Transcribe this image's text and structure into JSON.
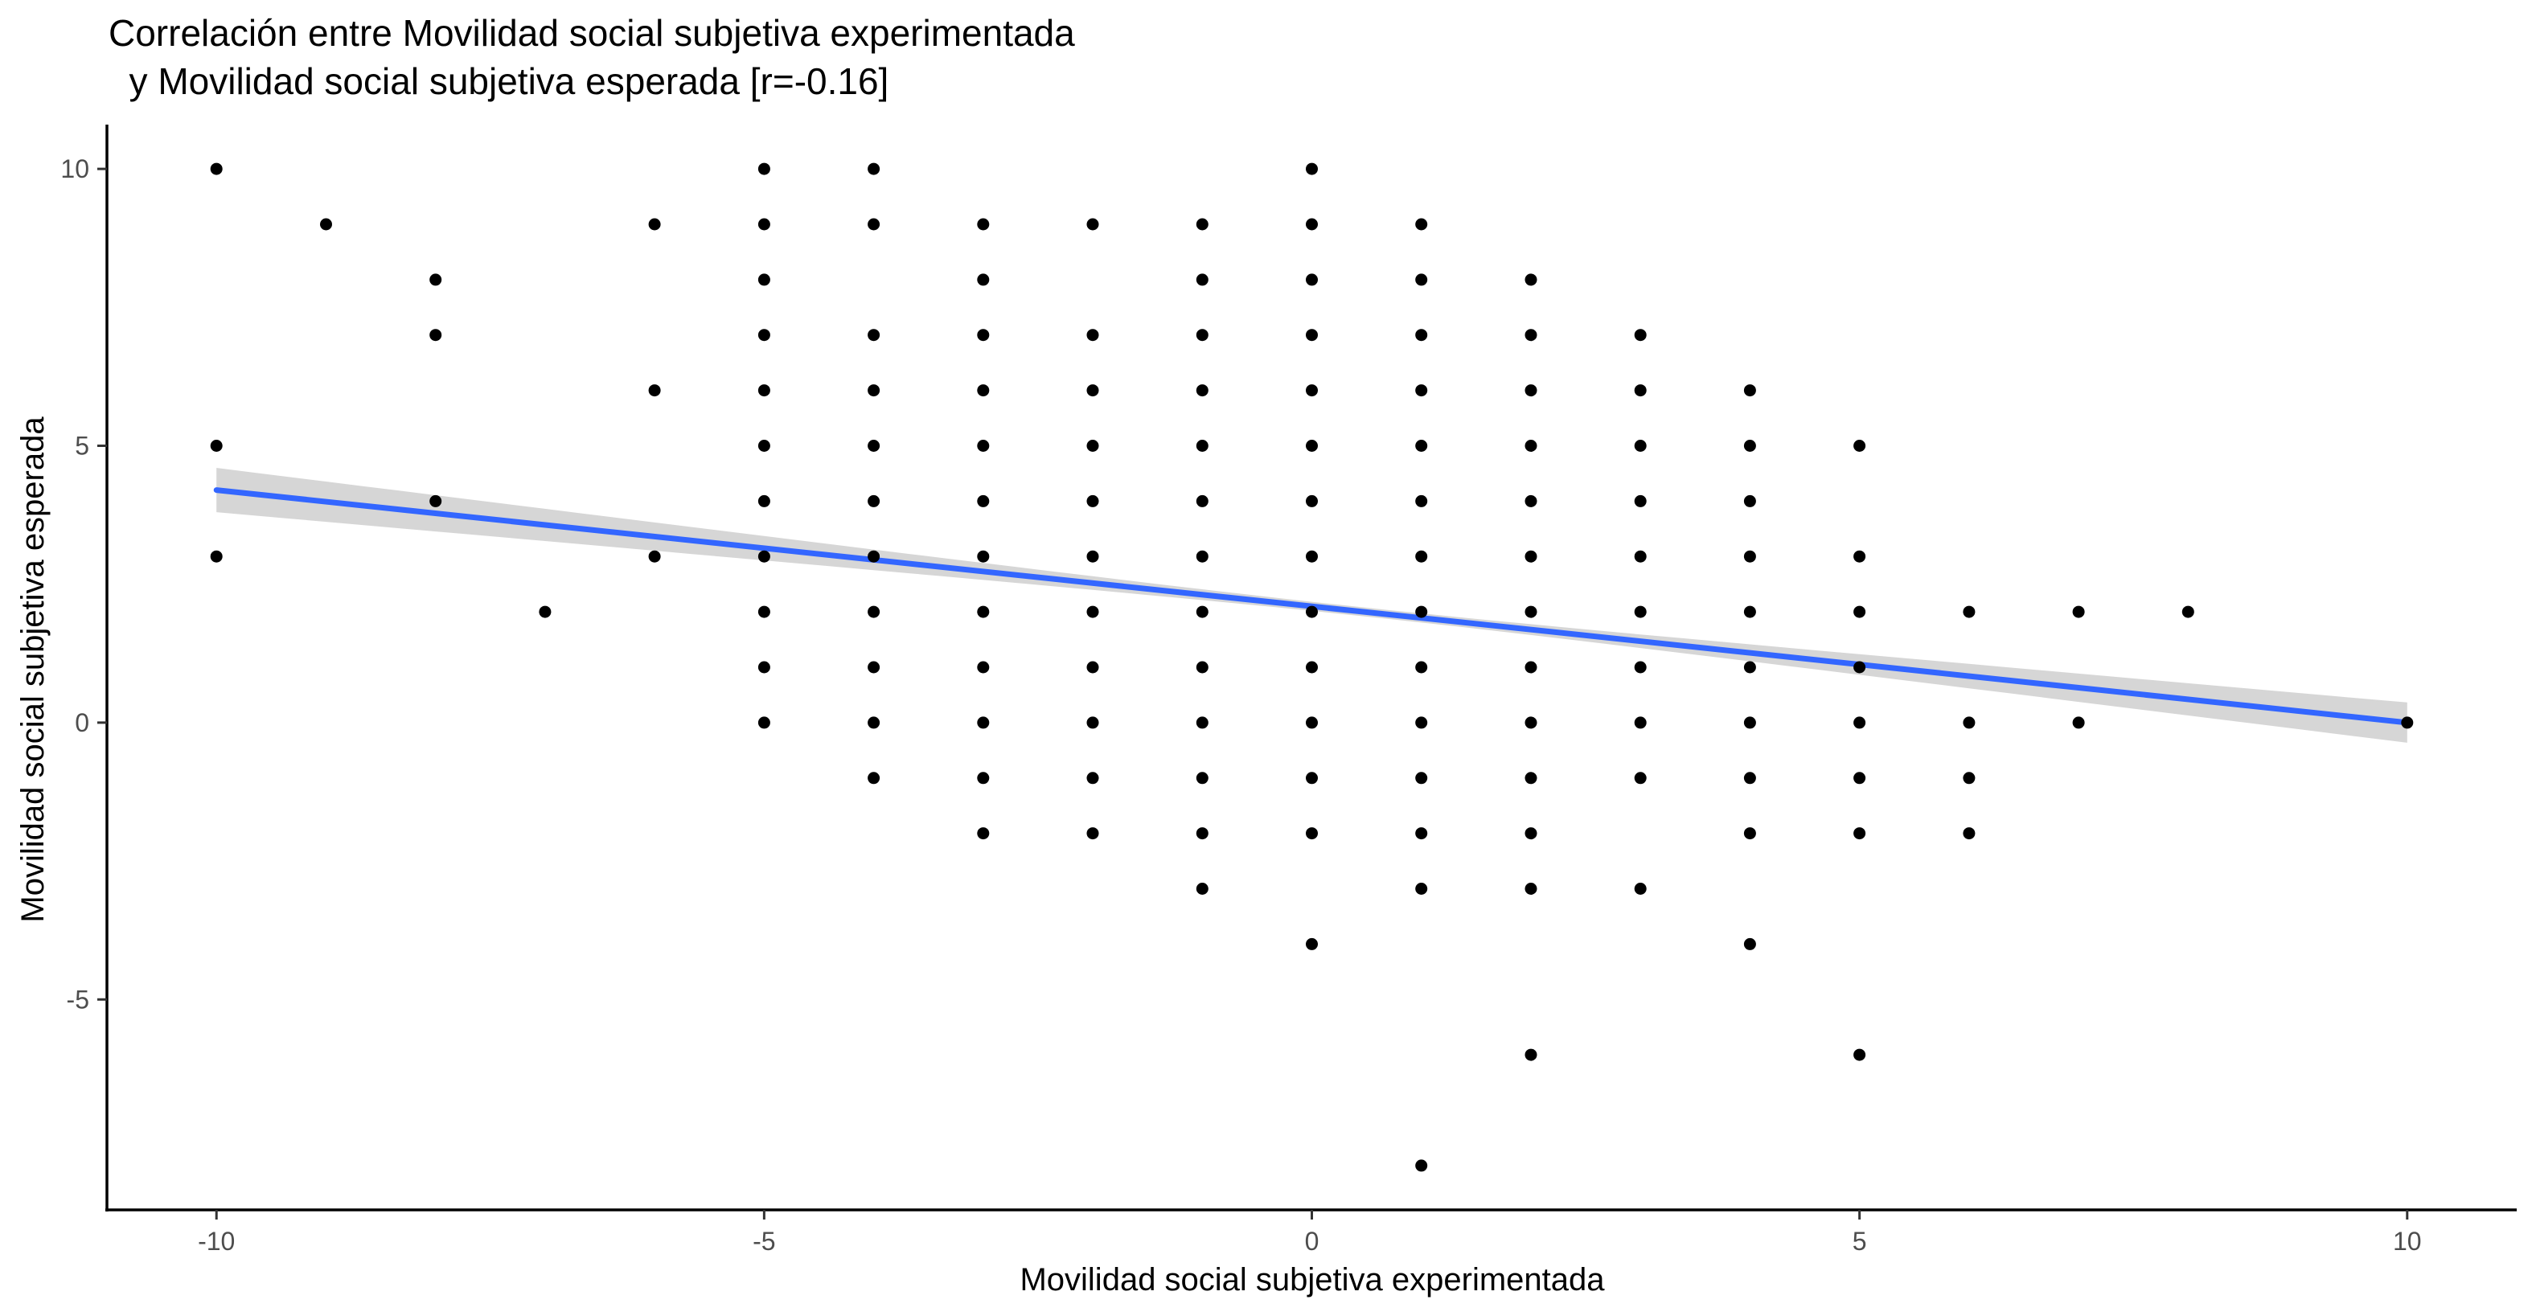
{
  "chart_data": {
    "type": "scatter",
    "title": [
      "Correlación entre Movilidad social subjetiva experimentada",
      "  y Movilidad social subjetiva esperada [r=-0.16]"
    ],
    "xlabel": "Movilidad social subjetiva experimentada",
    "ylabel": "Movilidad social subjetiva esperada",
    "xlim": [
      -11,
      11
    ],
    "ylim": [
      -8.8,
      10.8
    ],
    "x_ticks": [
      -10,
      -5,
      0,
      5,
      10
    ],
    "y_ticks": [
      -5,
      0,
      5,
      10
    ],
    "grid": false,
    "legend": "none",
    "point_color": "#000000",
    "points": [
      [
        -10,
        10
      ],
      [
        -10,
        5
      ],
      [
        -10,
        3
      ],
      [
        -9,
        9
      ],
      [
        -8,
        8
      ],
      [
        -8,
        7
      ],
      [
        -8,
        4
      ],
      [
        -7,
        2
      ],
      [
        -6,
        9
      ],
      [
        -6,
        6
      ],
      [
        -6,
        3
      ],
      [
        -5,
        10
      ],
      [
        -5,
        9
      ],
      [
        -5,
        8
      ],
      [
        -5,
        7
      ],
      [
        -5,
        6
      ],
      [
        -5,
        5
      ],
      [
        -5,
        4
      ],
      [
        -5,
        3
      ],
      [
        -5,
        2
      ],
      [
        -5,
        1
      ],
      [
        -5,
        0
      ],
      [
        -4,
        10
      ],
      [
        -4,
        9
      ],
      [
        -4,
        7
      ],
      [
        -4,
        6
      ],
      [
        -4,
        5
      ],
      [
        -4,
        4
      ],
      [
        -4,
        3
      ],
      [
        -4,
        2
      ],
      [
        -4,
        1
      ],
      [
        -4,
        0
      ],
      [
        -4,
        -1
      ],
      [
        -3,
        9
      ],
      [
        -3,
        8
      ],
      [
        -3,
        7
      ],
      [
        -3,
        6
      ],
      [
        -3,
        5
      ],
      [
        -3,
        4
      ],
      [
        -3,
        3
      ],
      [
        -3,
        2
      ],
      [
        -3,
        1
      ],
      [
        -3,
        0
      ],
      [
        -3,
        -1
      ],
      [
        -3,
        -2
      ],
      [
        -2,
        9
      ],
      [
        -2,
        7
      ],
      [
        -2,
        6
      ],
      [
        -2,
        5
      ],
      [
        -2,
        4
      ],
      [
        -2,
        3
      ],
      [
        -2,
        2
      ],
      [
        -2,
        1
      ],
      [
        -2,
        0
      ],
      [
        -2,
        -1
      ],
      [
        -2,
        -2
      ],
      [
        -1,
        9
      ],
      [
        -1,
        8
      ],
      [
        -1,
        7
      ],
      [
        -1,
        6
      ],
      [
        -1,
        5
      ],
      [
        -1,
        4
      ],
      [
        -1,
        3
      ],
      [
        -1,
        2
      ],
      [
        -1,
        1
      ],
      [
        -1,
        0
      ],
      [
        -1,
        -1
      ],
      [
        -1,
        -2
      ],
      [
        -1,
        -3
      ],
      [
        0,
        10
      ],
      [
        0,
        9
      ],
      [
        0,
        8
      ],
      [
        0,
        7
      ],
      [
        0,
        6
      ],
      [
        0,
        5
      ],
      [
        0,
        4
      ],
      [
        0,
        3
      ],
      [
        0,
        2
      ],
      [
        0,
        1
      ],
      [
        0,
        0
      ],
      [
        0,
        -1
      ],
      [
        0,
        -2
      ],
      [
        0,
        -4
      ],
      [
        1,
        9
      ],
      [
        1,
        8
      ],
      [
        1,
        7
      ],
      [
        1,
        6
      ],
      [
        1,
        5
      ],
      [
        1,
        4
      ],
      [
        1,
        3
      ],
      [
        1,
        2
      ],
      [
        1,
        1
      ],
      [
        1,
        0
      ],
      [
        1,
        -1
      ],
      [
        1,
        -2
      ],
      [
        1,
        -3
      ],
      [
        1,
        -8
      ],
      [
        2,
        8
      ],
      [
        2,
        7
      ],
      [
        2,
        6
      ],
      [
        2,
        5
      ],
      [
        2,
        4
      ],
      [
        2,
        3
      ],
      [
        2,
        2
      ],
      [
        2,
        1
      ],
      [
        2,
        0
      ],
      [
        2,
        -1
      ],
      [
        2,
        -2
      ],
      [
        2,
        -3
      ],
      [
        2,
        -6
      ],
      [
        3,
        7
      ],
      [
        3,
        6
      ],
      [
        3,
        5
      ],
      [
        3,
        4
      ],
      [
        3,
        3
      ],
      [
        3,
        2
      ],
      [
        3,
        1
      ],
      [
        3,
        0
      ],
      [
        3,
        -1
      ],
      [
        3,
        -3
      ],
      [
        4,
        6
      ],
      [
        4,
        5
      ],
      [
        4,
        4
      ],
      [
        4,
        3
      ],
      [
        4,
        2
      ],
      [
        4,
        1
      ],
      [
        4,
        0
      ],
      [
        4,
        -1
      ],
      [
        4,
        -2
      ],
      [
        4,
        -4
      ],
      [
        5,
        5
      ],
      [
        5,
        3
      ],
      [
        5,
        2
      ],
      [
        5,
        1
      ],
      [
        5,
        0
      ],
      [
        5,
        -1
      ],
      [
        5,
        -2
      ],
      [
        5,
        -6
      ],
      [
        6,
        2
      ],
      [
        6,
        0
      ],
      [
        6,
        -1
      ],
      [
        6,
        -2
      ],
      [
        7,
        2
      ],
      [
        7,
        0
      ],
      [
        8,
        2
      ],
      [
        10,
        0
      ]
    ],
    "fit_line": {
      "color": "#3366FF",
      "band_color": "#999999",
      "x": [
        -10,
        10
      ],
      "y": [
        4.2,
        0.0
      ],
      "ci_lower": [
        3.8,
        -0.3
      ],
      "ci_upper": [
        4.6,
        0.3
      ],
      "ci_center": [
        0.5,
        2.05
      ],
      "ci_center_halfwidth": 0.08
    }
  }
}
